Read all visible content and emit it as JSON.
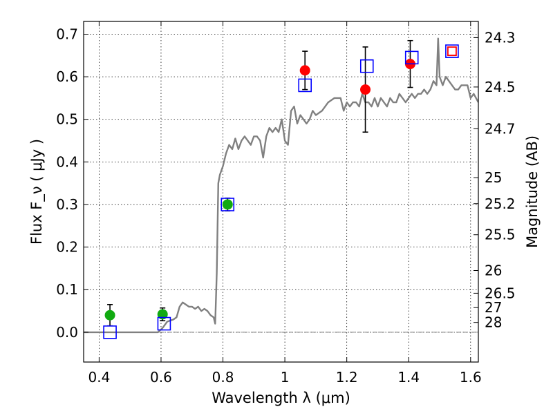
{
  "chart_data": {
    "type": "scatter",
    "xlabel": "Wavelength  λ (μm)",
    "ylabel": "Flux  F_ν  ( μJy )",
    "y2label": "Magnitude (AB)",
    "xlim": [
      0.35,
      1.625
    ],
    "ylim": [
      -0.07,
      0.73
    ],
    "xticks": [
      0.4,
      0.6,
      0.8,
      1.0,
      1.2,
      1.4,
      1.6
    ],
    "xtick_labels": [
      "0.4",
      "0.6",
      "0.8",
      "1",
      "1.2",
      "1.4",
      "1.6"
    ],
    "yticks": [
      0.0,
      0.1,
      0.2,
      0.3,
      0.4,
      0.5,
      0.6,
      0.7
    ],
    "ytick_labels": [
      "0.0",
      "0.1",
      "0.2",
      "0.3",
      "0.4",
      "0.5",
      "0.6",
      "0.7"
    ],
    "y2ticks": [
      {
        "flux": 0.692,
        "label": "24.3"
      },
      {
        "flux": 0.576,
        "label": "24.5"
      },
      {
        "flux": 0.478,
        "label": "24.7"
      },
      {
        "flux": 0.363,
        "label": "25"
      },
      {
        "flux": 0.302,
        "label": "25.2"
      },
      {
        "flux": 0.229,
        "label": "25.5"
      },
      {
        "flux": 0.145,
        "label": "26"
      },
      {
        "flux": 0.0916,
        "label": "26.5"
      },
      {
        "flux": 0.0578,
        "label": "27"
      },
      {
        "flux": 0.023,
        "label": "28"
      }
    ],
    "grid": true,
    "series": [
      {
        "kind": "line",
        "color": "#808080",
        "x": [
          0.35,
          0.5,
          0.59,
          0.605,
          0.62,
          0.64,
          0.65,
          0.66,
          0.67,
          0.68,
          0.69,
          0.7,
          0.71,
          0.72,
          0.73,
          0.74,
          0.75,
          0.76,
          0.77,
          0.775,
          0.78,
          0.785,
          0.79,
          0.8,
          0.81,
          0.82,
          0.83,
          0.84,
          0.85,
          0.86,
          0.87,
          0.88,
          0.89,
          0.9,
          0.91,
          0.92,
          0.93,
          0.94,
          0.95,
          0.96,
          0.97,
          0.98,
          0.99,
          1.0,
          1.01,
          1.02,
          1.03,
          1.04,
          1.05,
          1.06,
          1.07,
          1.08,
          1.09,
          1.1,
          1.12,
          1.14,
          1.16,
          1.18,
          1.19,
          1.2,
          1.21,
          1.22,
          1.23,
          1.24,
          1.25,
          1.26,
          1.27,
          1.28,
          1.29,
          1.3,
          1.31,
          1.32,
          1.33,
          1.34,
          1.35,
          1.36,
          1.37,
          1.38,
          1.39,
          1.4,
          1.41,
          1.42,
          1.43,
          1.44,
          1.45,
          1.46,
          1.47,
          1.48,
          1.49,
          1.495,
          1.5,
          1.51,
          1.52,
          1.53,
          1.54,
          1.55,
          1.56,
          1.57,
          1.58,
          1.59,
          1.6,
          1.61,
          1.625
        ],
        "y": [
          0.0,
          0.0,
          0.0,
          0.01,
          0.025,
          0.03,
          0.035,
          0.06,
          0.07,
          0.065,
          0.06,
          0.06,
          0.055,
          0.06,
          0.05,
          0.055,
          0.05,
          0.04,
          0.035,
          0.02,
          0.14,
          0.35,
          0.37,
          0.39,
          0.42,
          0.44,
          0.43,
          0.455,
          0.43,
          0.45,
          0.46,
          0.45,
          0.44,
          0.46,
          0.46,
          0.45,
          0.41,
          0.46,
          0.48,
          0.47,
          0.48,
          0.47,
          0.5,
          0.45,
          0.44,
          0.52,
          0.53,
          0.49,
          0.51,
          0.5,
          0.49,
          0.5,
          0.52,
          0.51,
          0.52,
          0.54,
          0.55,
          0.55,
          0.52,
          0.54,
          0.53,
          0.54,
          0.54,
          0.53,
          0.56,
          0.54,
          0.54,
          0.53,
          0.55,
          0.53,
          0.55,
          0.54,
          0.53,
          0.55,
          0.54,
          0.54,
          0.56,
          0.55,
          0.54,
          0.55,
          0.56,
          0.55,
          0.56,
          0.56,
          0.57,
          0.56,
          0.57,
          0.59,
          0.58,
          0.69,
          0.6,
          0.58,
          0.6,
          0.59,
          0.58,
          0.57,
          0.57,
          0.58,
          0.58,
          0.58,
          0.55,
          0.56,
          0.54
        ]
      },
      {
        "kind": "points",
        "marker": "circle",
        "color": "#11aa11",
        "x": [
          0.435,
          0.605,
          0.815
        ],
        "y": [
          0.04,
          0.042,
          0.3
        ],
        "yerr": [
          0.025,
          0.015,
          0.015
        ]
      },
      {
        "kind": "points",
        "marker": "circle",
        "color": "#ff0000",
        "x": [
          1.065,
          1.26,
          1.405
        ],
        "y": [
          0.615,
          0.57,
          0.63
        ],
        "yerr": [
          0.045,
          0.1,
          0.055
        ]
      },
      {
        "kind": "points",
        "marker": "square-open",
        "color": "#0000ff",
        "x": [
          0.435,
          0.61,
          0.815,
          1.065,
          1.265,
          1.41,
          1.54
        ],
        "y": [
          0.0,
          0.02,
          0.3,
          0.58,
          0.625,
          0.645,
          0.66
        ]
      },
      {
        "kind": "points",
        "marker": "square-open",
        "color": "#ff0000",
        "x": [
          1.54
        ],
        "y": [
          0.66
        ]
      }
    ]
  }
}
